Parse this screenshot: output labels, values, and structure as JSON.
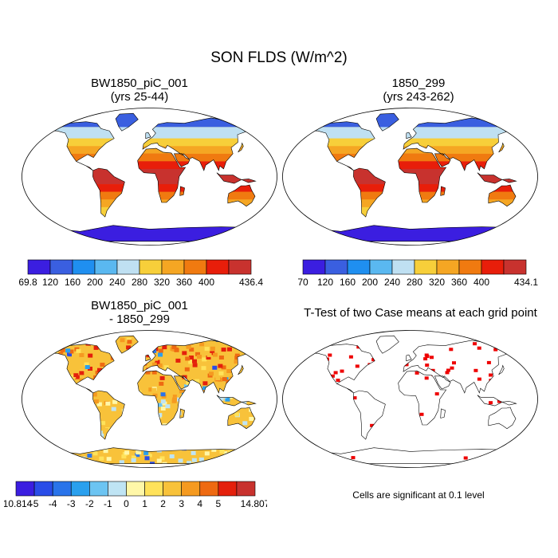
{
  "figure": {
    "title": "SON FLDS (W/m^2)"
  },
  "panels": [
    {
      "id": "case1",
      "title_lines": [
        "BW1850_piC_001",
        "(yrs 25-44)"
      ],
      "kind": "field",
      "scheme": "warm"
    },
    {
      "id": "case2",
      "title_lines": [
        "1850_299",
        "(yrs 243-262)"
      ],
      "kind": "field",
      "scheme": "warm"
    },
    {
      "id": "diff",
      "title_lines": [
        "BW1850_piC_001",
        "- 1850_299"
      ],
      "kind": "diff",
      "scheme": "diverging"
    },
    {
      "id": "ttest",
      "title_lines": [
        "T-Test of two Case means at each grid point"
      ],
      "kind": "signif",
      "scheme": "red"
    }
  ],
  "colorbars": [
    {
      "id": "cb1",
      "labels": [
        "69.8",
        "120",
        "160",
        "200",
        "240",
        "280",
        "320",
        "360",
        "400",
        "436.4"
      ],
      "colors": [
        "#3b1ee0",
        "#3a5fe0",
        "#1f8ff0",
        "#5ab8f0",
        "#bfe0f2",
        "#f7cf3a",
        "#f5a623",
        "#f07a10",
        "#e81e0a",
        "#c8322e"
      ]
    },
    {
      "id": "cb2",
      "labels": [
        "70",
        "120",
        "160",
        "200",
        "240",
        "280",
        "320",
        "360",
        "400",
        "434.1"
      ],
      "colors": [
        "#3b1ee0",
        "#3a5fe0",
        "#1f8ff0",
        "#5ab8f0",
        "#bfe0f2",
        "#f7cf3a",
        "#f5a623",
        "#f07a10",
        "#e81e0a",
        "#c8322e"
      ]
    },
    {
      "id": "cb3",
      "labels": [
        "-10.814",
        "-5",
        "-4",
        "-3",
        "-2",
        "-1",
        "0",
        "1",
        "2",
        "3",
        "4",
        "5",
        "14.807"
      ],
      "colors": [
        "#3b1ee0",
        "#2a4de8",
        "#2a74ea",
        "#2aa0ee",
        "#6cc4f2",
        "#bfe4f4",
        "#fff7a8",
        "#ffe25a",
        "#f8c23a",
        "#f59a20",
        "#ee6a12",
        "#e4200c",
        "#c8322e"
      ]
    }
  ],
  "significance_note": "Cells are significant at 0.1 level"
}
